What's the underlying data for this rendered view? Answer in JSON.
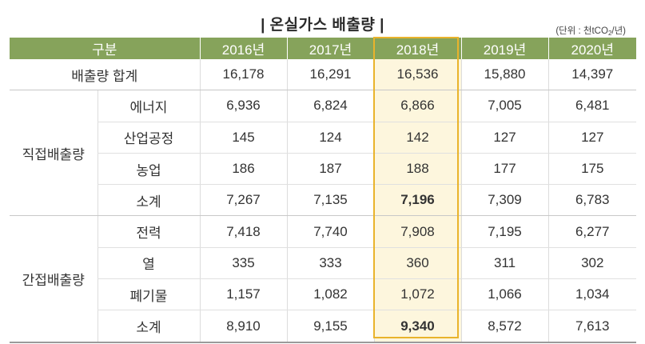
{
  "title": "| 온실가스 배출량 |",
  "unit": {
    "prefix": "(단위 : 천tCO",
    "subscript": "2",
    "suffix": "/년)"
  },
  "header": {
    "category": "구분",
    "years": [
      "2016년",
      "2017년",
      "2018년",
      "2019년",
      "2020년"
    ],
    "highlight_year": "2018년"
  },
  "colors": {
    "header_bg": "#86a35b",
    "highlight_bg": "#fdf6dd",
    "highlight_border": "#e9b32c"
  },
  "rows": {
    "total": {
      "label": "배출량 합계",
      "values": [
        "16,178",
        "16,291",
        "16,536",
        "15,880",
        "14,397"
      ]
    },
    "direct": {
      "group": "직접배출량",
      "items": [
        {
          "label": "에너지",
          "values": [
            "6,936",
            "6,824",
            "6,866",
            "7,005",
            "6,481"
          ]
        },
        {
          "label": "산업공정",
          "values": [
            "145",
            "124",
            "142",
            "127",
            "127"
          ]
        },
        {
          "label": "농업",
          "values": [
            "186",
            "187",
            "188",
            "177",
            "175"
          ]
        },
        {
          "label": "소계",
          "values": [
            "7,267",
            "7,135",
            "7,196",
            "7,309",
            "6,783"
          ]
        }
      ]
    },
    "indirect": {
      "group": "간접배출량",
      "items": [
        {
          "label": "전력",
          "values": [
            "7,418",
            "7,740",
            "7,908",
            "7,195",
            "6,277"
          ]
        },
        {
          "label": "열",
          "values": [
            "335",
            "333",
            "360",
            "311",
            "302"
          ]
        },
        {
          "label": "폐기물",
          "values": [
            "1,157",
            "1,082",
            "1,072",
            "1,066",
            "1,034"
          ]
        },
        {
          "label": "소계",
          "values": [
            "8,910",
            "9,155",
            "9,340",
            "8,572",
            "7,613"
          ]
        }
      ]
    }
  }
}
